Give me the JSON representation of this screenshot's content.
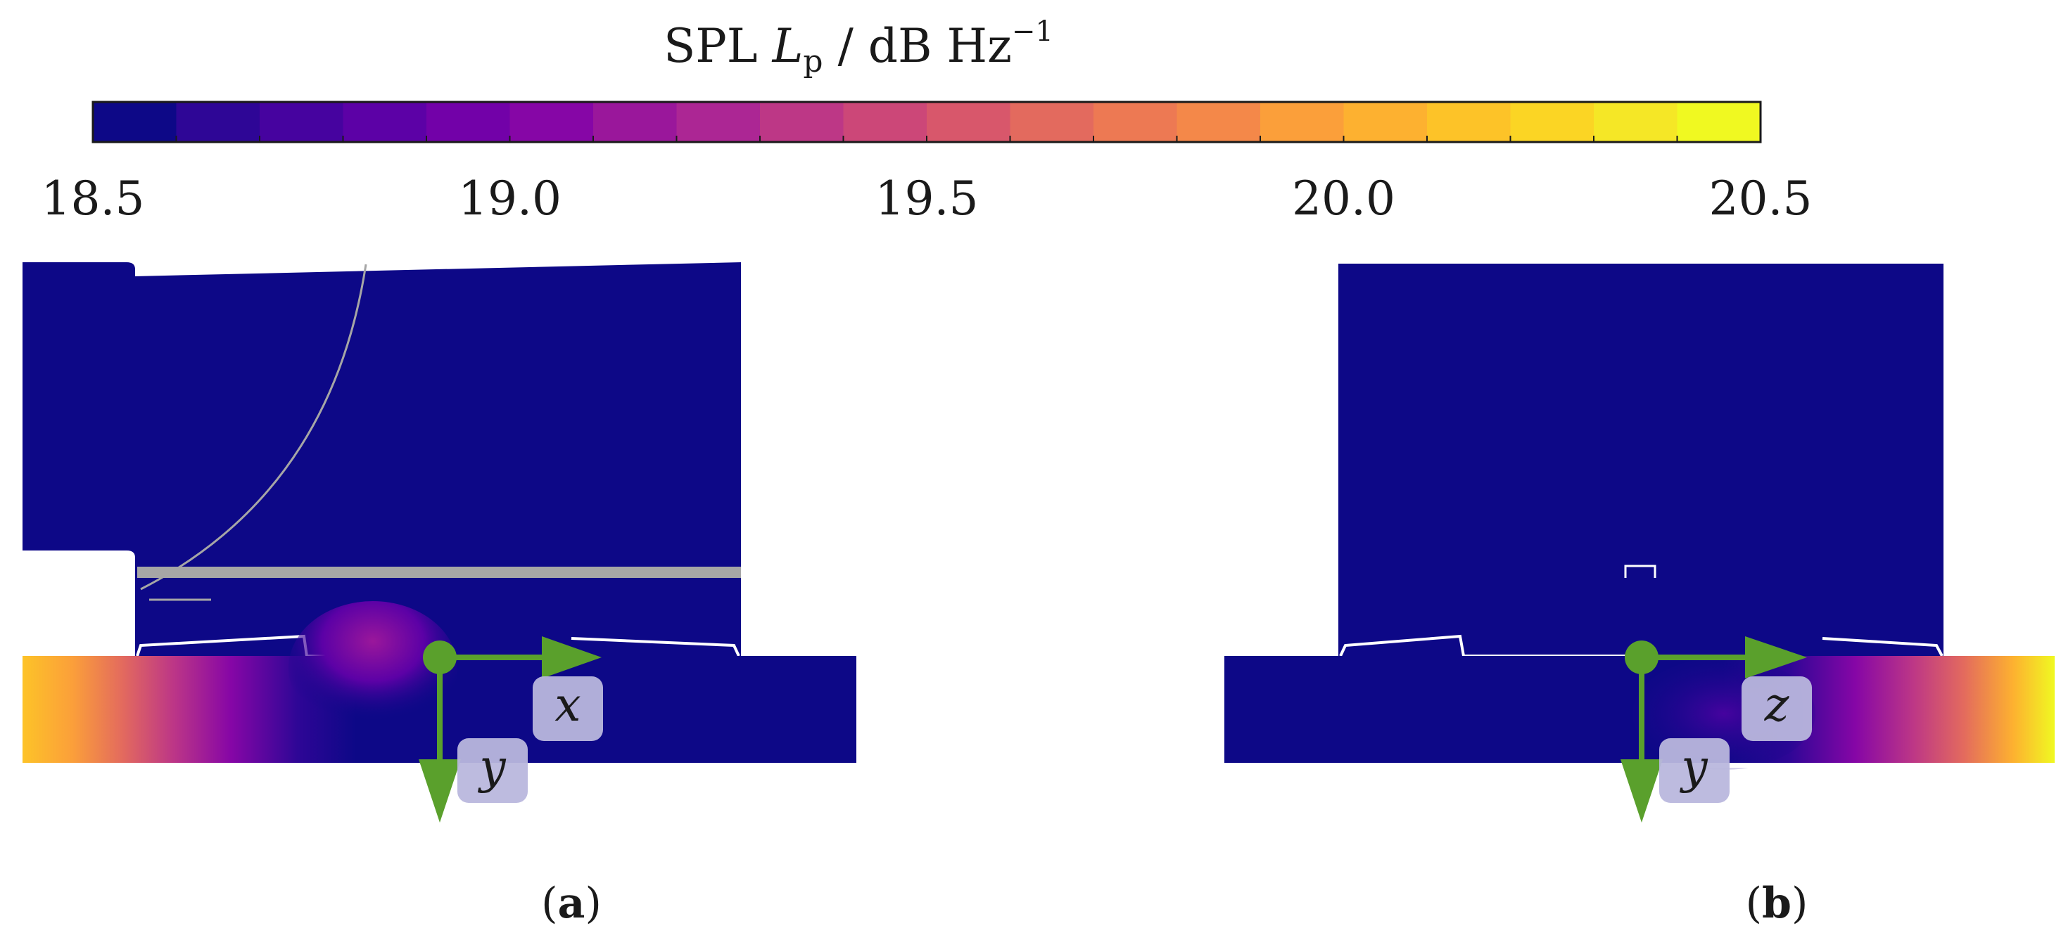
{
  "colorbar": {
    "title_main": "SPL ",
    "title_symbol": "L",
    "title_subscript": "p",
    "title_unit": " / dB Hz",
    "title_exponent": "−1",
    "min": 18.5,
    "max": 20.5,
    "levels": 20,
    "ticks": [
      "18.5",
      "19.0",
      "19.5",
      "20.0",
      "20.5"
    ],
    "colors": [
      "#0d0887",
      "#2e0696",
      "#46039f",
      "#5c01a6",
      "#7201a8",
      "#8606a6",
      "#9a179b",
      "#ac2694",
      "#bd3786",
      "#cc4778",
      "#d8576b",
      "#e36a5e",
      "#ed7953",
      "#f48849",
      "#fb9f3a",
      "#fdb130",
      "#fdc328",
      "#fbd524",
      "#f5e726",
      "#f0f921"
    ]
  },
  "panels": [
    {
      "id": "a",
      "label": "a",
      "axes": {
        "horizontal": "x",
        "vertical": "y"
      }
    },
    {
      "id": "b",
      "label": "b",
      "axes": {
        "horizontal": "z",
        "vertical": "y"
      }
    }
  ],
  "colors": {
    "field": "#0d0887",
    "axis_arrow": "#5aa02c",
    "axis_label_bg": "#b9b7dd",
    "geometry_gray": "#a6a6a6"
  }
}
